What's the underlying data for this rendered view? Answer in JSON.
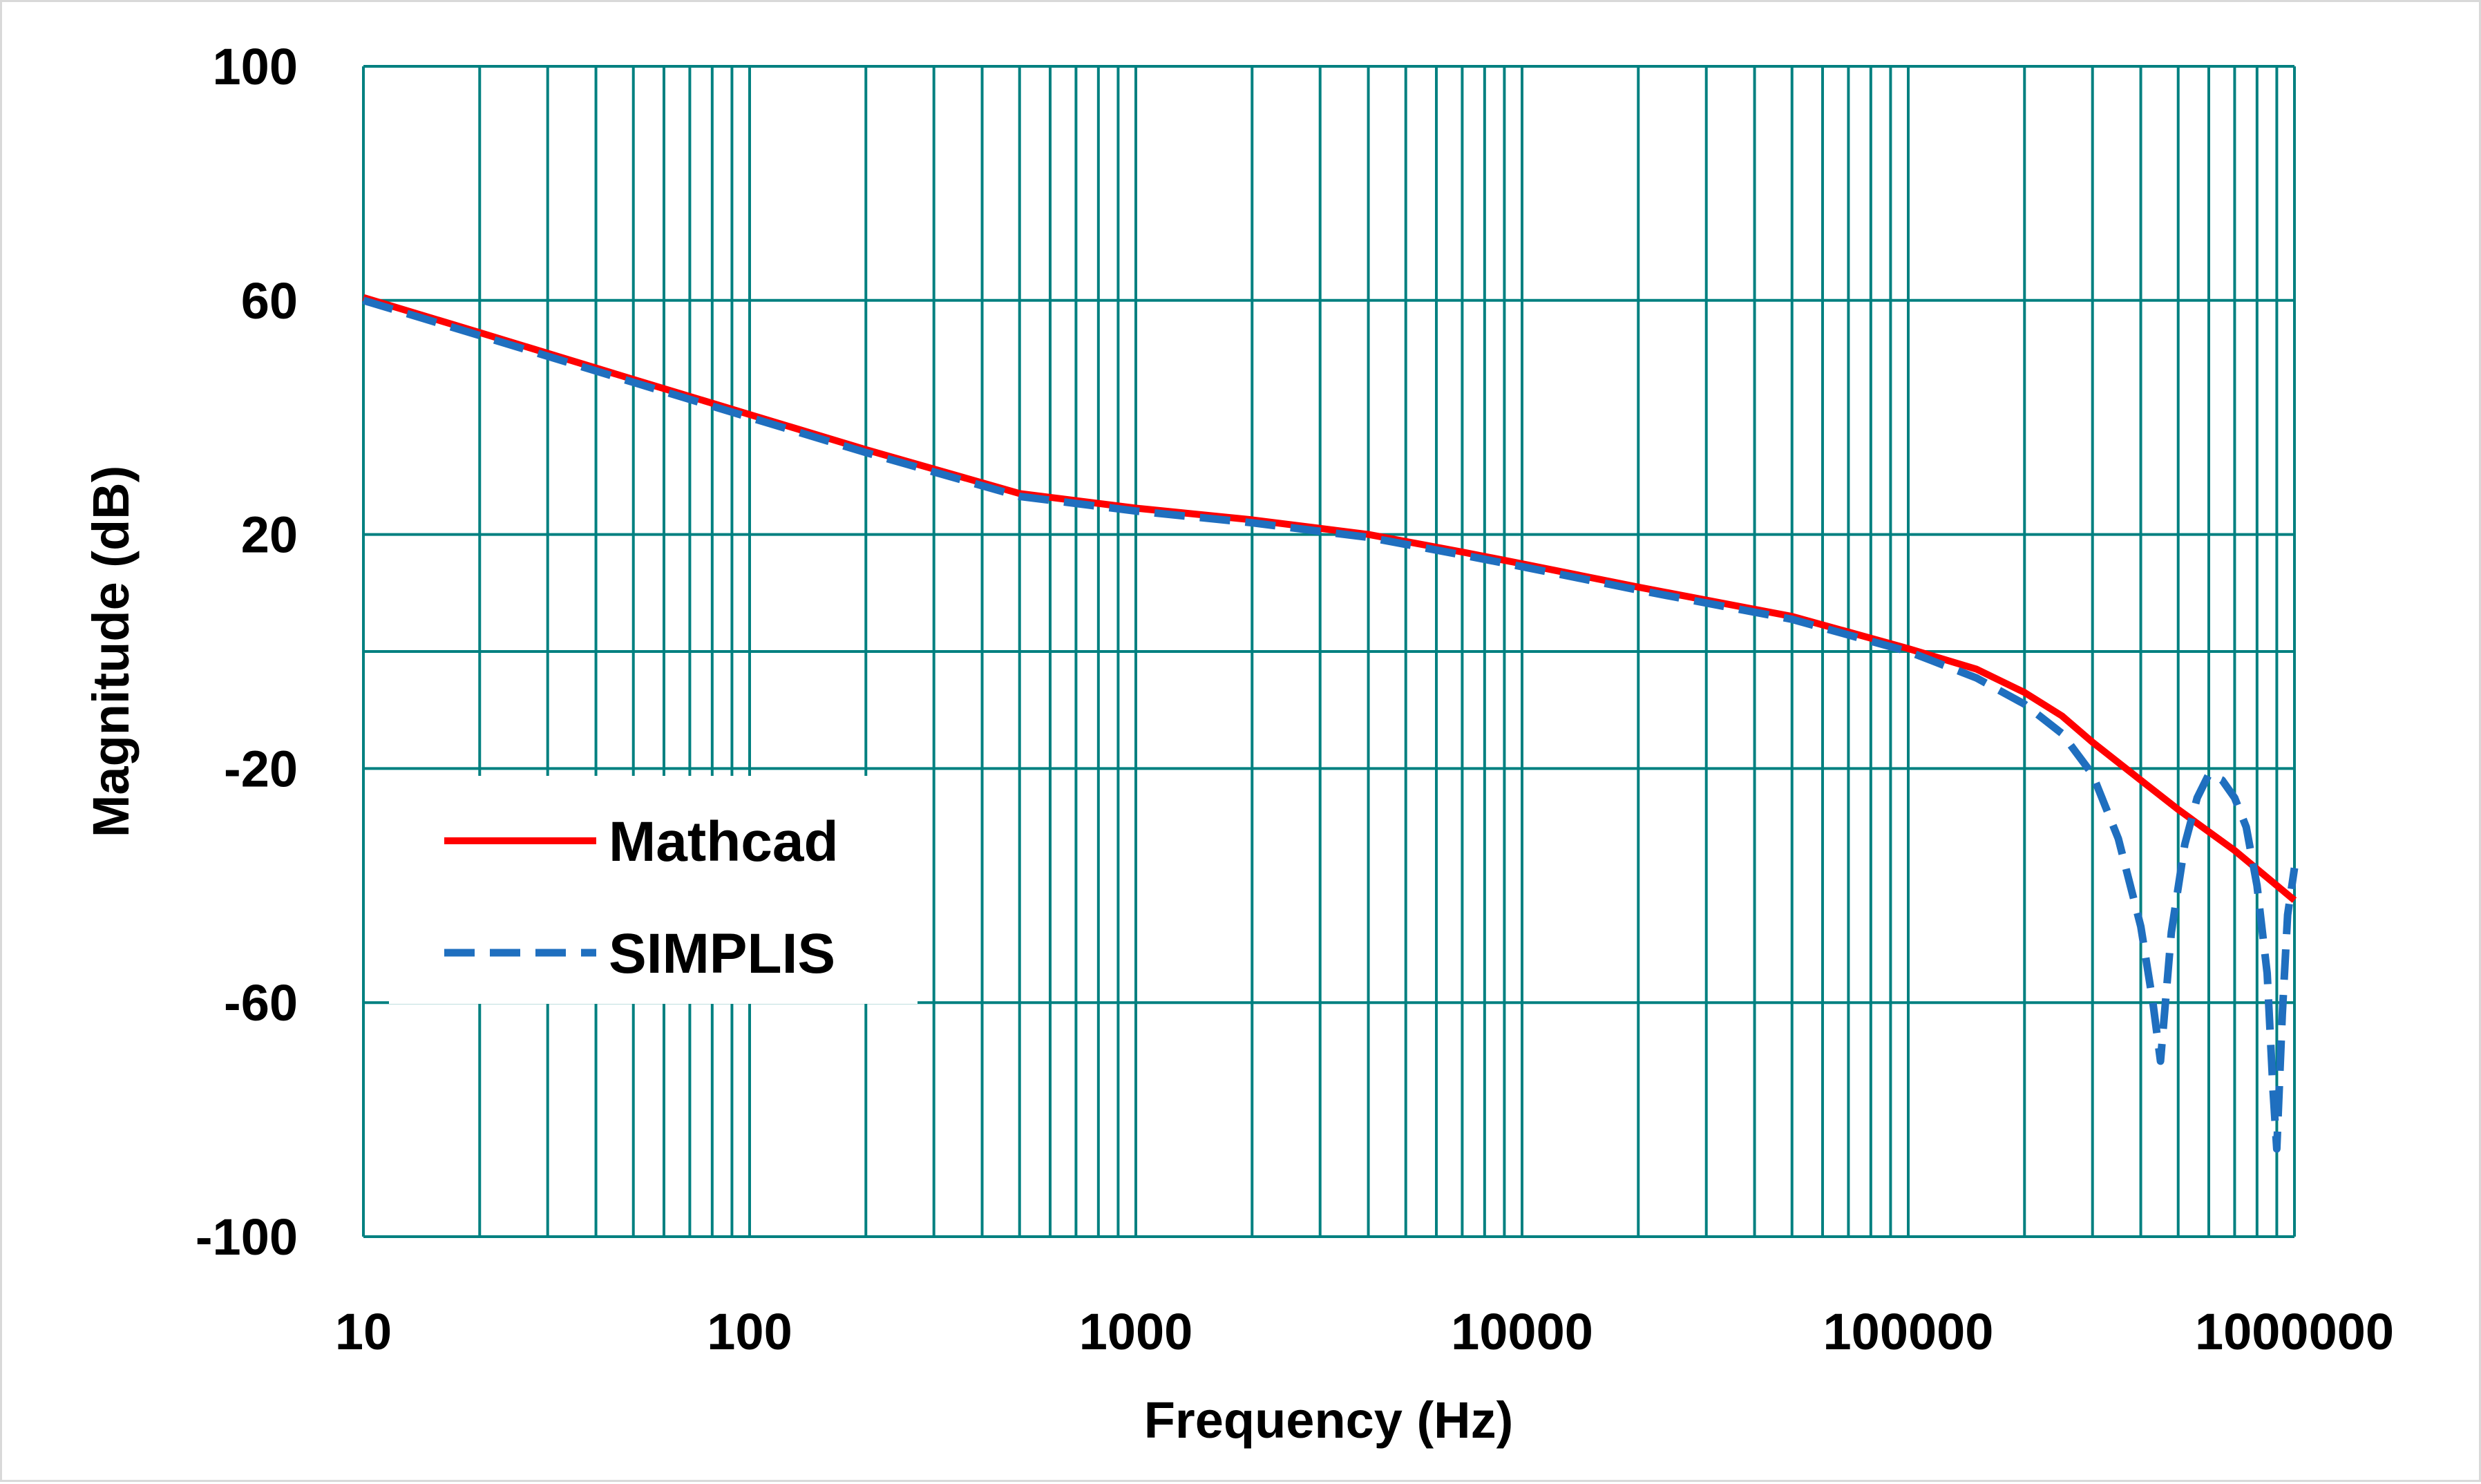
{
  "chart_data": {
    "type": "line",
    "title": "",
    "xlabel": "Frequency (Hz)",
    "ylabel": "Magnitude (dB)",
    "xscale": "log",
    "xlim": [
      10,
      1000000
    ],
    "ylim": [
      -100,
      100
    ],
    "x_tick_labels": [
      "10",
      "100",
      "1000",
      "10000",
      "100000",
      "1000000"
    ],
    "y_tick_labels": [
      "100",
      "60",
      "20",
      "-20",
      "-60",
      "-100"
    ],
    "y_gridlines": [
      100,
      60,
      20,
      0,
      -20,
      -60,
      -100
    ],
    "grid": true,
    "grid_color": "#008080",
    "legend_position": "bottom-left",
    "series": [
      {
        "name": "Mathcad",
        "color": "#ff0000",
        "style": "solid",
        "x": [
          10,
          20,
          50,
          100,
          200,
          500,
          1000,
          2000,
          4000,
          7000,
          10000,
          20000,
          50000,
          100000,
          150000,
          200000,
          250000,
          300000,
          400000,
          500000,
          700000,
          1000000
        ],
        "y": [
          60.5,
          54.5,
          46.5,
          40.5,
          34.5,
          27,
          24.5,
          22.5,
          20,
          17,
          15,
          11,
          6,
          0.5,
          -3,
          -7,
          -11,
          -15.5,
          -22,
          -27,
          -34,
          -42.5
        ]
      },
      {
        "name": "SIMPLIS",
        "color": "#1f6fbf",
        "style": "dashed",
        "x": [
          10,
          20,
          50,
          100,
          200,
          500,
          1000,
          2000,
          4000,
          7000,
          10000,
          20000,
          50000,
          100000,
          150000,
          200000,
          250000,
          300000,
          350000,
          400000,
          430000,
          450000,
          480000,
          520000,
          560000,
          600000,
          650000,
          700000,
          750000,
          800000,
          850000,
          880000,
          900000,
          930000,
          960000,
          1000000
        ],
        "y": [
          60,
          54,
          46,
          40,
          34,
          26.5,
          24,
          22,
          19.5,
          16.5,
          14.5,
          10.5,
          5.5,
          0,
          -4.5,
          -9,
          -14,
          -21,
          -32,
          -47,
          -60,
          -70,
          -48,
          -33,
          -25,
          -21,
          -22,
          -25,
          -30,
          -40,
          -55,
          -75,
          -85,
          -62,
          -45,
          -37
        ]
      }
    ]
  }
}
